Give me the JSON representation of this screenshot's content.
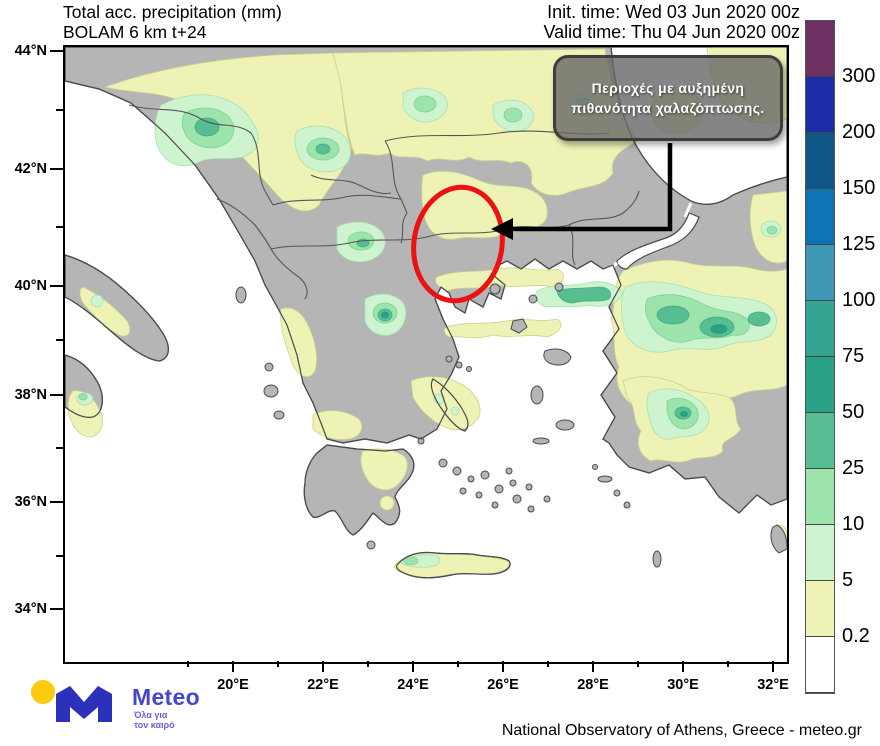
{
  "header": {
    "title_line1": "Total acc. precipitation (mm)",
    "title_line2": "BOLAM 6 km t+24",
    "init_time": "Init. time: Wed 03 Jun 2020 00z",
    "valid_time": "Valid time: Thu 04 Jun 2020 00z"
  },
  "axes": {
    "lat_labels": [
      "44°N",
      "42°N",
      "40°N",
      "38°N",
      "36°N",
      "34°N"
    ],
    "lon_labels": [
      "20°E",
      "22°E",
      "24°E",
      "26°E",
      "28°E",
      "30°E",
      "32°E"
    ]
  },
  "colorbar": {
    "tick_labels": [
      "300",
      "200",
      "150",
      "125",
      "100",
      "75",
      "50",
      "25",
      "10",
      "5",
      "0.2"
    ],
    "segment_colors_top_to_bottom": [
      "#6e2f63",
      "#1b2da6",
      "#0e5687",
      "#0f74b3",
      "#3e98b5",
      "#33a492",
      "#28a184",
      "#57be92",
      "#9de3ac",
      "#cdf3cf",
      "#eef2b4",
      "#ffffff"
    ]
  },
  "annotation": {
    "line1": "Περιοχές με  αυξημένη",
    "line2": "πιθανότητα χαλαζόπτωσης."
  },
  "branding": {
    "logo_text": "Meteo",
    "tagline_line1": "Όλα για",
    "tagline_line2": "τον καιρό",
    "attribution": "National Observatory of Athens, Greece - meteo.gr"
  }
}
